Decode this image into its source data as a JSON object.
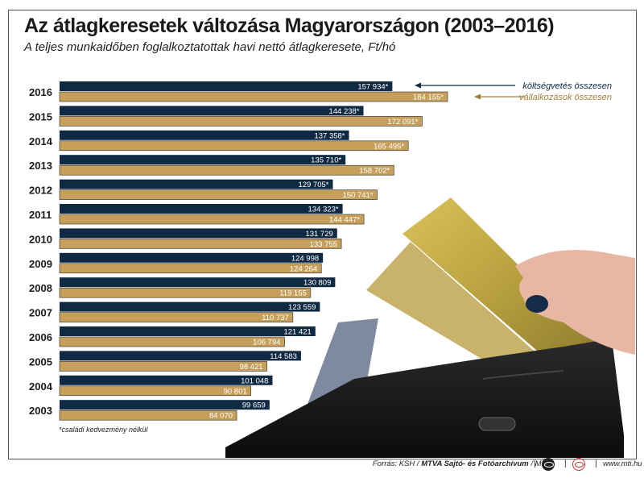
{
  "title": "Az átlagkeresetek változása Magyarországon (2003–2016)",
  "subtitle": "A teljes munkaidőben foglalkoztatottak havi nettó átlagkeresete, Ft/hó",
  "footnote": "*családi kedvezmény nélkül",
  "source": {
    "prefix": "Forrás: KSH / ",
    "bold": "MTVA Sajtó- és Fotóarchívum",
    "suffix": " / MTI",
    "site": "www.mti.hu"
  },
  "colors": {
    "navy": "#102a43",
    "gold": "#c6a05a"
  },
  "chart_data": {
    "type": "bar",
    "orientation": "horizontal",
    "categories": [
      "2016",
      "2015",
      "2014",
      "2013",
      "2012",
      "2011",
      "2010",
      "2009",
      "2008",
      "2007",
      "2006",
      "2005",
      "2004",
      "2003"
    ],
    "series": [
      {
        "name": "költségvetés összesen",
        "color": "#102a43",
        "values": [
          157934,
          144238,
          137358,
          135710,
          129705,
          134323,
          131729,
          124998,
          130809,
          123559,
          121421,
          114583,
          101048,
          99659
        ],
        "labels": [
          "157 934*",
          "144 238*",
          "137 358*",
          "135 710*",
          "129 705*",
          "134 323*",
          "131 729",
          "124 998",
          "130 809",
          "123 559",
          "121 421",
          "114 583",
          "101 048",
          "99 659"
        ]
      },
      {
        "name": "vállalkozások összesen",
        "color": "#c6a05a",
        "values": [
          184155,
          172091,
          165495,
          158702,
          150741,
          144447,
          133755,
          124264,
          119155,
          110737,
          106794,
          98421,
          90801,
          84070
        ],
        "labels": [
          "184 155*",
          "172 091*",
          "165 495*",
          "158 702*",
          "150 741*",
          "144 447*",
          "133 755",
          "124 264",
          "119 155",
          "110 737",
          "106 794",
          "98 421",
          "90 801",
          "84 070"
        ]
      }
    ],
    "xlim": [
      0,
      184155
    ],
    "legend_placement": "top-right"
  }
}
